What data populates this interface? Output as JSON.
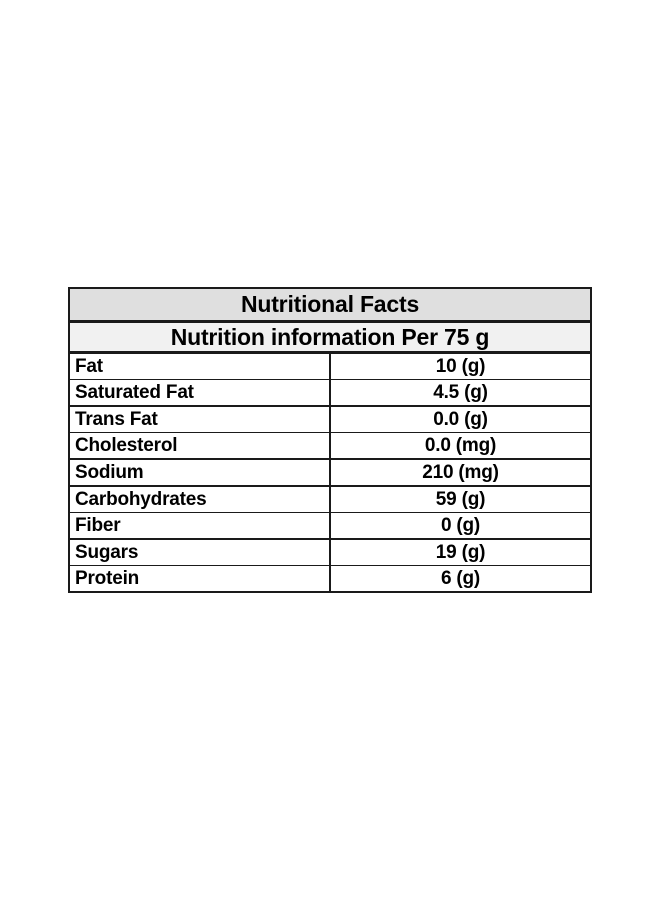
{
  "table": {
    "title": "Nutritional Facts",
    "subtitle": "Nutrition information Per 75 g",
    "rows": [
      {
        "label": "Fat",
        "value": "10 (g)"
      },
      {
        "label": "Saturated Fat",
        "value": "4.5 (g)"
      },
      {
        "label": "Trans Fat",
        "value": "0.0 (g)"
      },
      {
        "label": "Cholesterol",
        "value": "0.0 (mg)"
      },
      {
        "label": "Sodium",
        "value": "210 (mg)"
      },
      {
        "label": "Carbohydrates",
        "value": "59 (g)"
      },
      {
        "label": "Fiber",
        "value": "0 (g)"
      },
      {
        "label": "Sugars",
        "value": "19 (g)"
      },
      {
        "label": "Protein",
        "value": "6 (g)"
      }
    ]
  },
  "colors": {
    "page_bg": "#ffffff",
    "header_bg": "#dfdfdf",
    "subheader_bg": "#f1f1f1",
    "border": "#1a1a1a",
    "text": "#000000"
  }
}
